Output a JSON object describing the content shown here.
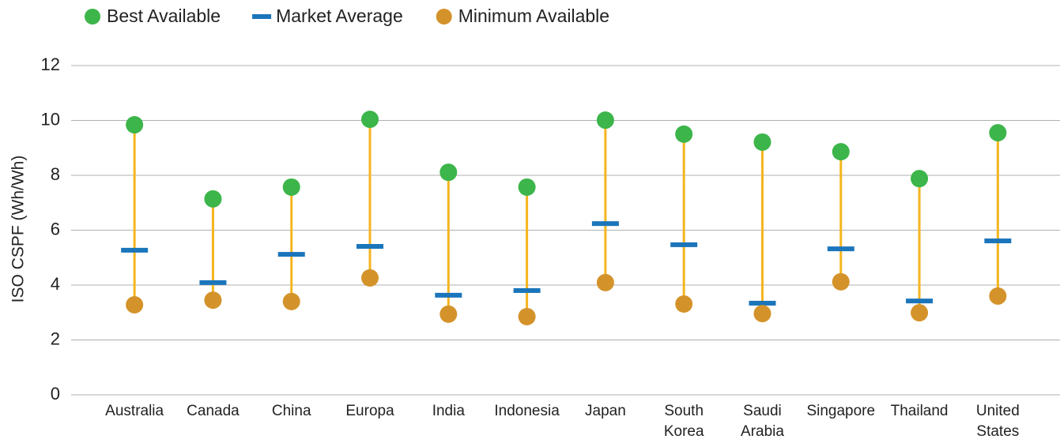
{
  "chart_data": {
    "type": "range_dot",
    "y_label": "ISO CSPF (Wh/Wh)",
    "categories": [
      "Australia",
      "Canada",
      "China",
      "Europa",
      "India",
      "Indonesia",
      "Japan",
      "South Korea",
      "Saudi Arabia",
      "Singapore",
      "Thailand",
      "United States"
    ],
    "series": [
      {
        "name": "Best Available",
        "color": "#3cb54a",
        "marker": "circle",
        "values": [
          9.84,
          7.14,
          7.57,
          10.04,
          8.11,
          7.57,
          10.01,
          9.5,
          9.21,
          8.86,
          7.88,
          9.55
        ]
      },
      {
        "name": "Market Average",
        "color": "#1b75bb",
        "marker": "dash",
        "values": [
          5.27,
          4.09,
          5.12,
          5.41,
          3.63,
          3.8,
          6.24,
          5.47,
          3.34,
          5.32,
          3.42,
          5.61
        ]
      },
      {
        "name": "Minimum Available",
        "color": "#d4932a",
        "marker": "circle",
        "values": [
          3.28,
          3.45,
          3.4,
          4.26,
          2.94,
          2.85,
          4.09,
          3.31,
          2.96,
          4.12,
          2.99,
          3.6
        ]
      }
    ],
    "range_color": "#f5b51e",
    "ylim": [
      0,
      12
    ],
    "yticks": [
      0,
      2,
      4,
      6,
      8,
      10,
      12
    ],
    "grid": true,
    "legend": "top-left"
  }
}
